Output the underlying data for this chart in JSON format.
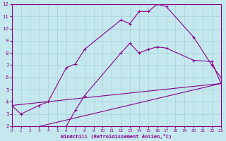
{
  "xlabel": "Windchill (Refroidissement éolien,°C)",
  "xlim": [
    0,
    23
  ],
  "ylim": [
    2,
    12
  ],
  "xticks": [
    0,
    1,
    2,
    3,
    4,
    5,
    6,
    7,
    8,
    9,
    10,
    11,
    12,
    13,
    14,
    15,
    16,
    17,
    18,
    19,
    20,
    21,
    22,
    23
  ],
  "yticks": [
    2,
    3,
    4,
    5,
    6,
    7,
    8,
    9,
    10,
    11,
    12
  ],
  "background_color": "#c5e8ef",
  "grid_color": "#a8d0da",
  "line_color": "#880088",
  "line1": {
    "x": [
      0,
      1,
      3,
      4,
      6,
      7,
      8,
      12,
      13,
      14,
      15,
      16,
      17,
      20,
      22,
      23
    ],
    "y": [
      3.7,
      3.0,
      3.7,
      4.0,
      6.8,
      7.1,
      8.3,
      10.7,
      10.4,
      11.4,
      11.4,
      12.0,
      11.8,
      9.3,
      7.0,
      6.0
    ]
  },
  "line2": {
    "x": [
      2,
      3,
      4,
      5,
      6,
      7,
      8,
      12,
      13,
      14,
      15,
      16,
      17,
      20,
      22,
      23
    ],
    "y": [
      1.8,
      1.8,
      1.7,
      1.8,
      2.0,
      3.3,
      4.5,
      8.0,
      8.8,
      8.0,
      8.3,
      8.5,
      8.4,
      7.4,
      7.3,
      5.5
    ]
  },
  "line3": {
    "x": [
      0,
      23
    ],
    "y": [
      3.7,
      5.5
    ]
  },
  "line4": {
    "x": [
      2,
      23
    ],
    "y": [
      1.8,
      5.5
    ]
  }
}
